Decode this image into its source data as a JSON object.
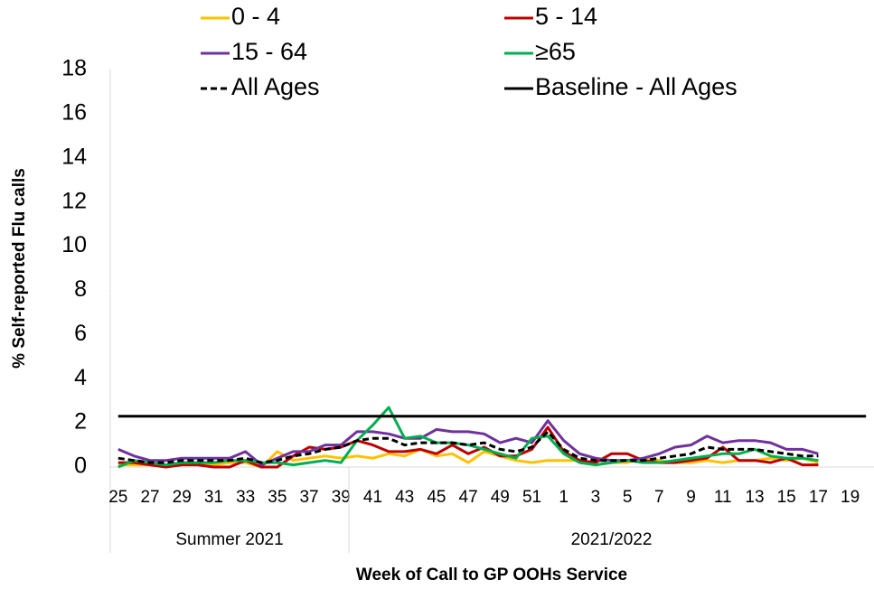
{
  "chart_data": {
    "type": "line",
    "y_label": "% Self-reported Flu calls",
    "x_label": "Week of Call to GP OOHs Service",
    "categories": [
      "25",
      null,
      "27",
      null,
      "29",
      null,
      "31",
      null,
      "33",
      null,
      "35",
      null,
      "37",
      null,
      "39",
      null,
      "41",
      null,
      "43",
      null,
      "45",
      null,
      "47",
      null,
      "49",
      null,
      "51",
      null,
      "1",
      null,
      "3",
      null,
      "5",
      null,
      "7",
      null,
      "9",
      null,
      "11",
      null,
      "13",
      null,
      "15",
      null,
      "17",
      null,
      "19",
      null
    ],
    "x_groups": [
      {
        "label": "Summer 2021",
        "count": 15
      },
      {
        "label": "2021/2022",
        "count": 33
      }
    ],
    "ylim": [
      0,
      18
    ],
    "yticks": [
      0,
      2,
      4,
      6,
      8,
      10,
      12,
      14,
      16,
      18
    ],
    "legend": "top",
    "series": [
      {
        "name": "0 - 4",
        "color": "#ffc000",
        "values": [
          0.1,
          0.1,
          0.1,
          0.0,
          0.2,
          0.2,
          0.1,
          0.2,
          0.2,
          0.0,
          0.7,
          0.3,
          0.4,
          0.5,
          0.4,
          0.5,
          0.4,
          0.6,
          0.5,
          0.8,
          0.5,
          0.6,
          0.2,
          0.7,
          0.5,
          0.3,
          0.2,
          0.3,
          0.3,
          0.3,
          0.1,
          0.2,
          0.2,
          0.4,
          0.3,
          0.2,
          0.2,
          0.3,
          0.2,
          0.3,
          0.3,
          0.4,
          0.3,
          0.4,
          0.2,
          null,
          null,
          null
        ]
      },
      {
        "name": "5 - 14",
        "color": "#c00000",
        "values": [
          0.2,
          0.2,
          0.1,
          0.0,
          0.1,
          0.1,
          0.0,
          0.0,
          0.3,
          0.0,
          0.0,
          0.5,
          0.9,
          0.8,
          0.9,
          1.2,
          1.0,
          0.7,
          0.7,
          0.8,
          0.6,
          1.0,
          0.6,
          0.9,
          0.5,
          0.5,
          0.8,
          1.8,
          0.7,
          0.3,
          0.2,
          0.6,
          0.6,
          0.3,
          0.2,
          0.2,
          0.3,
          0.4,
          0.9,
          0.3,
          0.3,
          0.2,
          0.4,
          0.1,
          0.1,
          null,
          null,
          null
        ]
      },
      {
        "name": "15 - 64",
        "color": "#7030a0",
        "values": [
          0.8,
          0.5,
          0.3,
          0.3,
          0.4,
          0.4,
          0.4,
          0.4,
          0.7,
          0.1,
          0.4,
          0.7,
          0.7,
          1.0,
          1.0,
          1.6,
          1.6,
          1.5,
          1.3,
          1.3,
          1.7,
          1.6,
          1.6,
          1.5,
          1.1,
          1.3,
          1.1,
          2.1,
          1.2,
          0.6,
          0.4,
          0.3,
          0.3,
          0.4,
          0.6,
          0.9,
          1.0,
          1.4,
          1.1,
          1.2,
          1.2,
          1.1,
          0.8,
          0.8,
          0.6,
          null,
          null,
          null
        ]
      },
      {
        "name": "≥65",
        "color": "#00b050",
        "values": [
          0.0,
          0.3,
          0.2,
          0.1,
          0.2,
          0.2,
          0.2,
          0.3,
          0.3,
          0.2,
          0.2,
          0.1,
          0.2,
          0.3,
          0.2,
          1.2,
          1.9,
          2.7,
          1.3,
          1.4,
          1.1,
          1.1,
          1.0,
          0.8,
          0.6,
          0.4,
          1.3,
          1.4,
          0.6,
          0.2,
          0.1,
          0.2,
          0.3,
          0.2,
          0.2,
          0.3,
          0.4,
          0.5,
          0.6,
          0.6,
          0.8,
          0.5,
          0.4,
          0.4,
          0.3,
          null,
          null,
          null
        ]
      },
      {
        "name": "All Ages",
        "color": "#000000",
        "dash": "dashed",
        "values": [
          0.4,
          0.3,
          0.2,
          0.2,
          0.3,
          0.3,
          0.3,
          0.3,
          0.4,
          0.2,
          0.3,
          0.5,
          0.6,
          0.8,
          0.9,
          1.2,
          1.3,
          1.3,
          1.0,
          1.1,
          1.1,
          1.1,
          1.0,
          1.1,
          0.8,
          0.7,
          0.9,
          1.6,
          0.8,
          0.4,
          0.3,
          0.3,
          0.3,
          0.3,
          0.4,
          0.5,
          0.6,
          0.9,
          0.8,
          0.8,
          0.8,
          0.7,
          0.6,
          0.5,
          0.5,
          null,
          null,
          null
        ]
      },
      {
        "name": "Baseline - All Ages",
        "color": "#000000",
        "values": [
          2.3,
          2.3,
          2.3,
          2.3,
          2.3,
          2.3,
          2.3,
          2.3,
          2.3,
          2.3,
          2.3,
          2.3,
          2.3,
          2.3,
          2.3,
          2.3,
          2.3,
          2.3,
          2.3,
          2.3,
          2.3,
          2.3,
          2.3,
          2.3,
          2.3,
          2.3,
          2.3,
          2.3,
          2.3,
          2.3,
          2.3,
          2.3,
          2.3,
          2.3,
          2.3,
          2.3,
          2.3,
          2.3,
          2.3,
          2.3,
          2.3,
          2.3,
          2.3,
          2.3,
          2.3,
          2.3,
          2.3,
          2.3
        ]
      }
    ]
  }
}
